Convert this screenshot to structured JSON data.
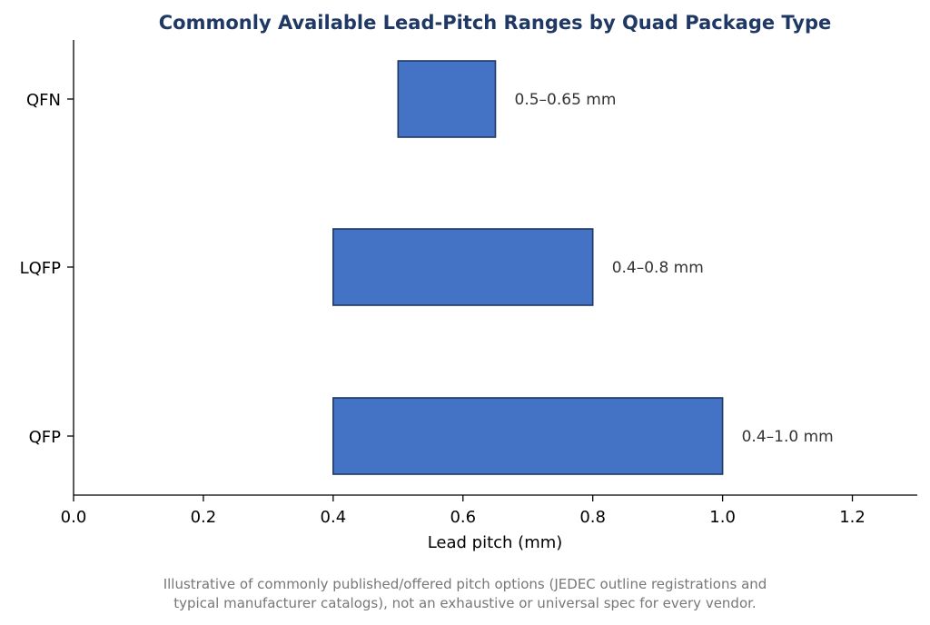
{
  "chart_data": {
    "type": "bar",
    "orientation": "horizontal-floating-range",
    "title": "Commonly Available Lead-Pitch Ranges by Quad Package Type",
    "xlabel": "Lead pitch (mm)",
    "ylabel": "",
    "xlim": [
      0.0,
      1.3
    ],
    "xticks": [
      "0.0",
      "0.2",
      "0.4",
      "0.6",
      "0.8",
      "1.0",
      "1.2"
    ],
    "grid": false,
    "bar_color": "#4472c4",
    "bar_edge_color": "#1f3864",
    "categories": [
      "QFN",
      "LQFP",
      "QFP"
    ],
    "ranges": [
      {
        "category": "QFN",
        "min": 0.5,
        "max": 0.65,
        "label": "0.5–0.65 mm"
      },
      {
        "category": "LQFP",
        "min": 0.4,
        "max": 0.8,
        "label": "0.4–0.8 mm"
      },
      {
        "category": "QFP",
        "min": 0.4,
        "max": 1.0,
        "label": "0.4–1.0 mm"
      }
    ],
    "footnote": [
      "Illustrative of commonly published/offered pitch options (JEDEC outline registrations and",
      "typical manufacturer catalogs), not an exhaustive or universal spec for every vendor."
    ]
  }
}
